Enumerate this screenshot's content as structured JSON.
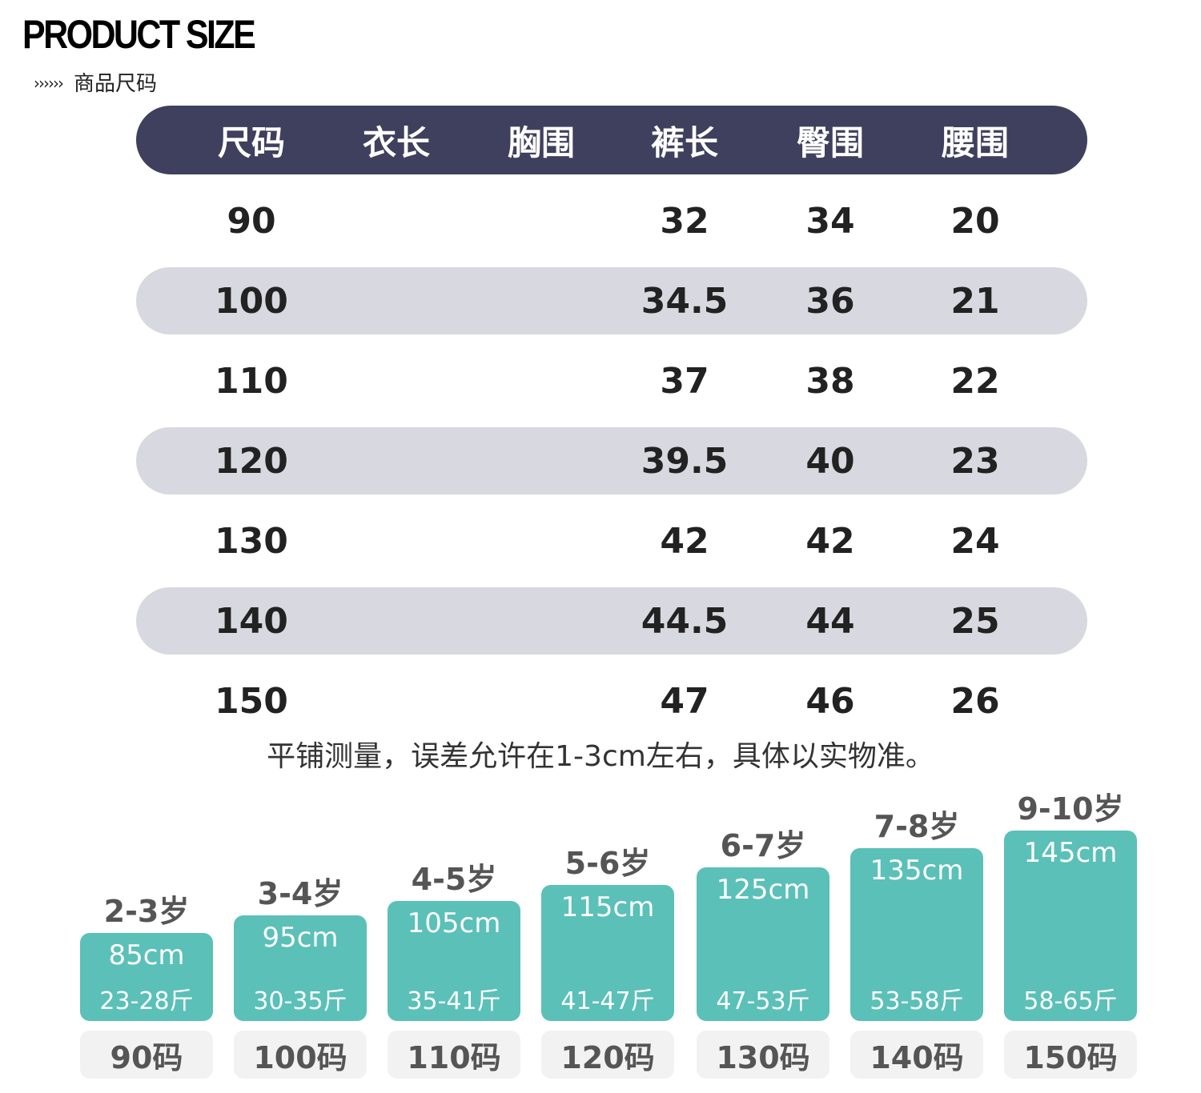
{
  "header": {
    "title": "PRODUCT SIZE",
    "arrows": "››››››",
    "subtitle": "商品尺码"
  },
  "size_table": {
    "columns": [
      "尺码",
      "衣长",
      "胸围",
      "裤长",
      "臀围",
      "腰围"
    ],
    "rows": [
      [
        "90",
        "",
        "",
        "32",
        "34",
        "20"
      ],
      [
        "100",
        "",
        "",
        "34.5",
        "36",
        "21"
      ],
      [
        "110",
        "",
        "",
        "37",
        "38",
        "22"
      ],
      [
        "120",
        "",
        "",
        "39.5",
        "40",
        "23"
      ],
      [
        "130",
        "",
        "",
        "42",
        "42",
        "24"
      ],
      [
        "140",
        "",
        "",
        "44.5",
        "44",
        "25"
      ],
      [
        "150",
        "",
        "",
        "47",
        "46",
        "26"
      ]
    ]
  },
  "note": "平铺测量，误差允许在1-3cm左右，具体以实物准。",
  "height_guide": [
    {
      "age": "2-3岁",
      "height": "85cm",
      "weight": "23-28斤",
      "size": "90码"
    },
    {
      "age": "3-4岁",
      "height": "95cm",
      "weight": "30-35斤",
      "size": "100码"
    },
    {
      "age": "4-5岁",
      "height": "105cm",
      "weight": "35-41斤",
      "size": "110码"
    },
    {
      "age": "5-6岁",
      "height": "115cm",
      "weight": "41-47斤",
      "size": "120码"
    },
    {
      "age": "6-7岁",
      "height": "125cm",
      "weight": "47-53斤",
      "size": "130码"
    },
    {
      "age": "7-8岁",
      "height": "135cm",
      "weight": "53-58斤",
      "size": "140码"
    },
    {
      "age": "9-10岁",
      "height": "145cm",
      "weight": "58-65斤",
      "size": "150码"
    }
  ],
  "colors": {
    "header_bar": "#3f3f5e",
    "row_shade": "#d8d8e0",
    "bar_fill": "#5bc0b8",
    "label_bg": "#f2f2f2"
  }
}
